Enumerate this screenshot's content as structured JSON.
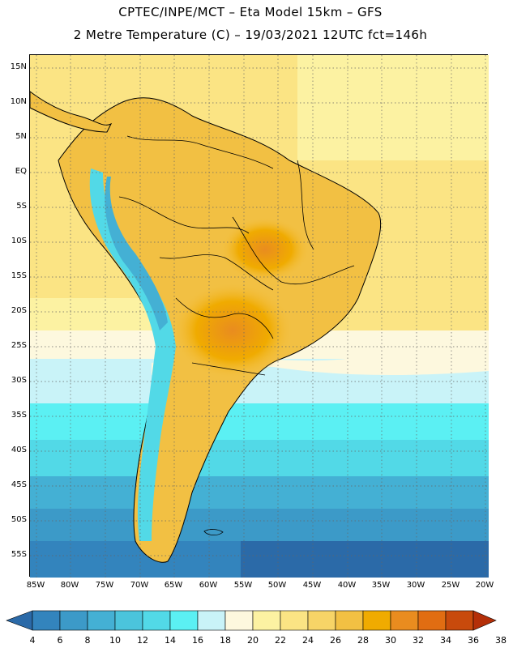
{
  "header": {
    "line1": "CPTEC/INPE/MCT –  Eta Model 15km – GFS",
    "line2": "2 Metre Temperature (C) – 19/03/2021 12UTC fct=146h"
  },
  "map": {
    "lat_labels": [
      "15N",
      "10N",
      "5N",
      "EQ",
      "5S",
      "10S",
      "15S",
      "20S",
      "25S",
      "30S",
      "35S",
      "40S",
      "45S",
      "50S",
      "55S"
    ],
    "lon_labels": [
      "85W",
      "80W",
      "75W",
      "70W",
      "65W",
      "60W",
      "55W",
      "50W",
      "45W",
      "40W",
      "35W",
      "30W",
      "25W",
      "20W"
    ]
  },
  "legend": {
    "labels": [
      "4",
      "6",
      "8",
      "10",
      "12",
      "14",
      "16",
      "18",
      "20",
      "22",
      "24",
      "26",
      "28",
      "30",
      "32",
      "34",
      "36",
      "38"
    ],
    "colors": [
      "#2b6aa8",
      "#3384bd",
      "#3c9ac8",
      "#44b0d4",
      "#4bc4dc",
      "#52d9e7",
      "#5bf0f3",
      "#c9f3f8",
      "#fdf8de",
      "#fcf2a2",
      "#fbe484",
      "#f7d467",
      "#f2c043",
      "#f0ab00",
      "#e98c1f",
      "#e16d12",
      "#c84a0c",
      "#b42f08"
    ]
  }
}
